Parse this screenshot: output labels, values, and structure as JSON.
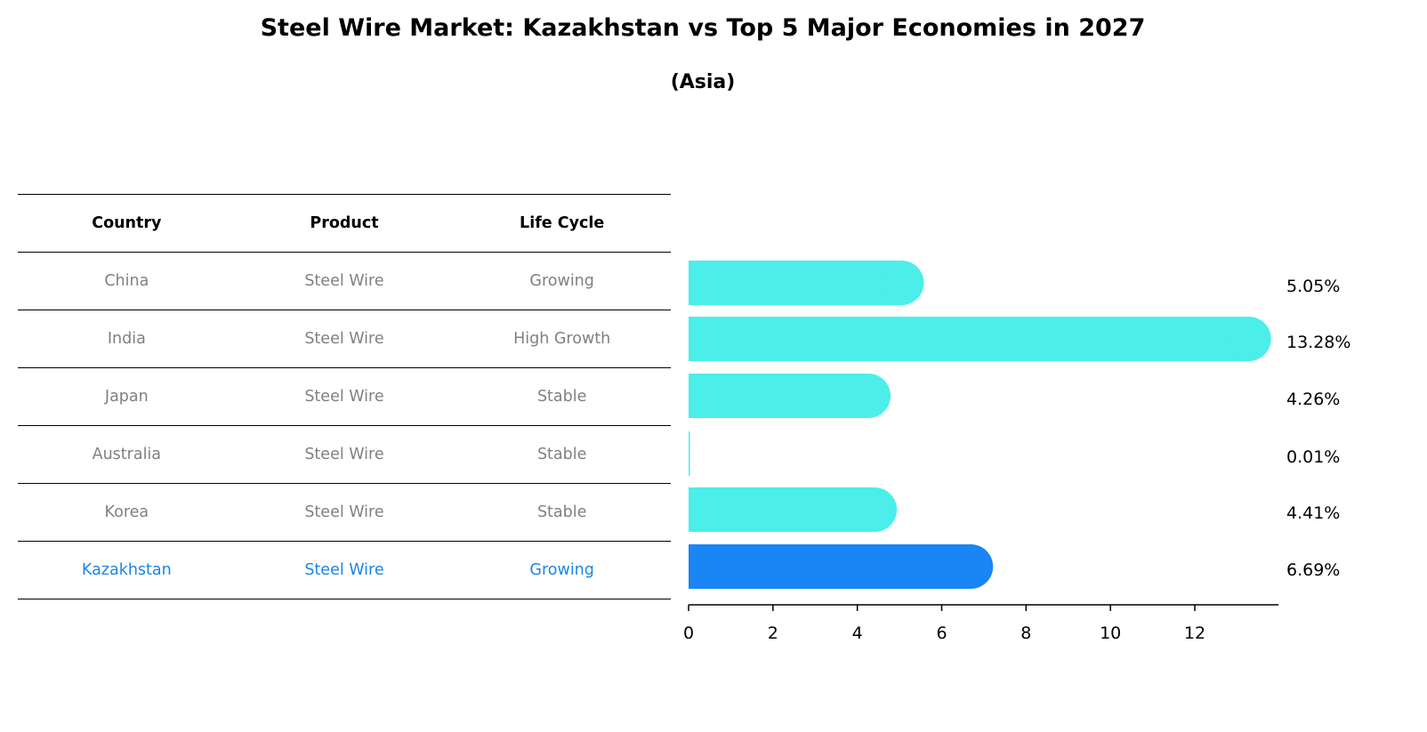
{
  "title": "Steel Wire Market: Kazakhstan vs Top 5 Major Economies in 2027",
  "subtitle": "(Asia)",
  "table": {
    "headers": [
      "Country",
      "Product",
      "Life Cycle"
    ],
    "rows": [
      [
        "China",
        "Steel Wire",
        "Growing"
      ],
      [
        "India",
        "Steel Wire",
        "High Growth"
      ],
      [
        "Japan",
        "Steel Wire",
        "Stable"
      ],
      [
        "Australia",
        "Steel Wire",
        "Stable"
      ],
      [
        "Korea",
        "Steel Wire",
        "Stable"
      ],
      [
        "Kazakhstan",
        "Steel Wire",
        "Growing"
      ]
    ],
    "highlight_row": 5
  },
  "chart_data": {
    "type": "bar",
    "orientation": "horizontal",
    "categories": [
      "China",
      "India",
      "Japan",
      "Australia",
      "Korea",
      "Kazakhstan"
    ],
    "values": [
      5.05,
      13.28,
      4.26,
      0.01,
      4.41,
      6.69
    ],
    "labels": [
      "5.05%",
      "13.28%",
      "4.26%",
      "0.01%",
      "4.41%",
      "6.69%"
    ],
    "xlim": [
      0,
      13.97
    ],
    "xticks": [
      0,
      2,
      4,
      6,
      8,
      10,
      12
    ],
    "colors": {
      "default": "#4beee9",
      "highlight": "#1a85f5"
    },
    "highlight_index": 5
  }
}
